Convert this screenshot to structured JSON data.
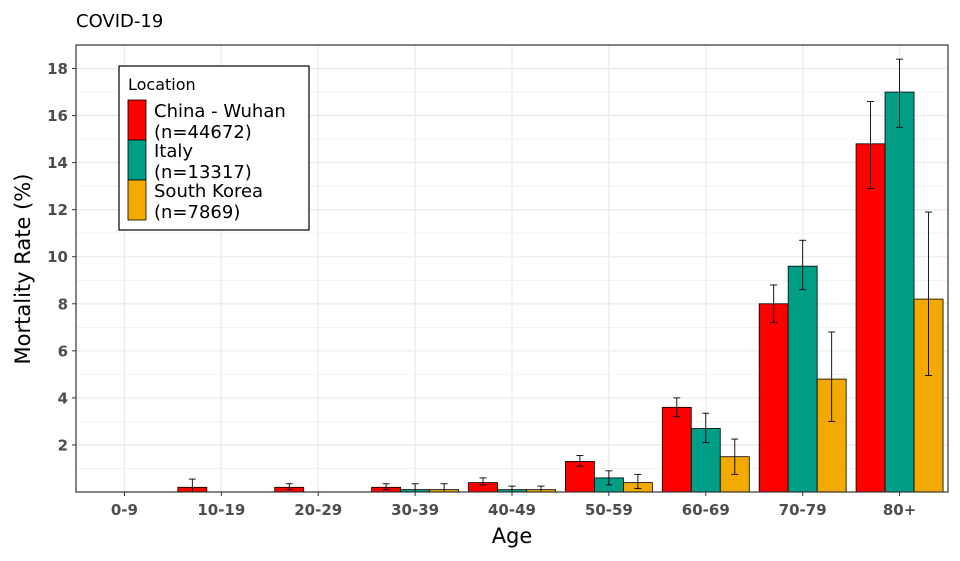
{
  "chart_data": {
    "type": "bar",
    "title": "COVID-19",
    "xlabel": "Age",
    "ylabel": "Mortality Rate (%)",
    "categories": [
      "0-9",
      "10-19",
      "20-29",
      "30-39",
      "40-49",
      "50-59",
      "60-69",
      "70-79",
      "80+"
    ],
    "ylim": [
      0,
      19
    ],
    "yticks": [
      2,
      4,
      6,
      8,
      10,
      12,
      14,
      16,
      18
    ],
    "grid": true,
    "legend": {
      "title": "Location",
      "placement": "top-left"
    },
    "series": [
      {
        "name": "China - Wuhan\n(n=44672)",
        "color": "#ff0000",
        "values": [
          0,
          0.2,
          0.2,
          0.2,
          0.4,
          1.3,
          3.6,
          8.0,
          14.8
        ],
        "error_low": [
          0,
          0,
          0.1,
          0.1,
          0.3,
          1.1,
          3.2,
          7.2,
          12.9
        ],
        "error_high": [
          0,
          0.55,
          0.35,
          0.35,
          0.6,
          1.55,
          4.0,
          8.8,
          16.6
        ]
      },
      {
        "name": "Italy\n(n=13317)",
        "color": "#009e87",
        "values": [
          0,
          0,
          0,
          0.1,
          0.1,
          0.6,
          2.7,
          9.6,
          17.0
        ],
        "error_low": [
          0,
          0,
          0,
          0,
          0,
          0.3,
          2.1,
          8.6,
          15.5
        ],
        "error_high": [
          0,
          0,
          0,
          0.35,
          0.25,
          0.9,
          3.35,
          10.7,
          18.4
        ]
      },
      {
        "name": "South Korea\n(n=7869)",
        "color": "#f2a900",
        "values": [
          0,
          0,
          0,
          0.1,
          0.1,
          0.4,
          1.5,
          4.8,
          8.2
        ],
        "error_low": [
          0,
          0,
          0,
          0,
          0,
          0.15,
          0.75,
          3.0,
          4.95
        ],
        "error_high": [
          0,
          0,
          0,
          0.35,
          0.25,
          0.75,
          2.25,
          6.8,
          11.9
        ]
      }
    ]
  }
}
